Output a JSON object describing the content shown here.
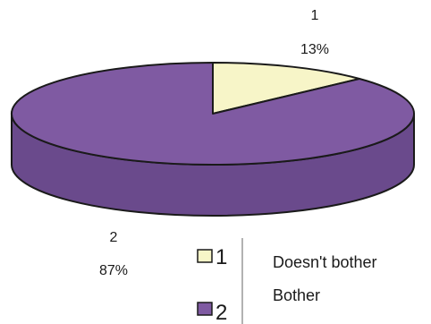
{
  "chart_data": {
    "type": "pie",
    "style": "3d",
    "categories": [
      "1",
      "2"
    ],
    "values": [
      13,
      87
    ],
    "data_labels": [
      {
        "category": "1",
        "percent": "13%"
      },
      {
        "category": "2",
        "percent": "87%"
      }
    ],
    "colors": [
      "#f7f5c8",
      "#7f5aa2"
    ],
    "side_color": "#6a4a8c",
    "outline_color": "#1a1a1a",
    "legend": {
      "placement": "bottom-right",
      "entries": [
        {
          "key": "1",
          "label": "Doesn't bother",
          "color": "#f7f5c8"
        },
        {
          "key": "2",
          "label": "Bother",
          "color": "#7f5aa2"
        }
      ]
    }
  }
}
